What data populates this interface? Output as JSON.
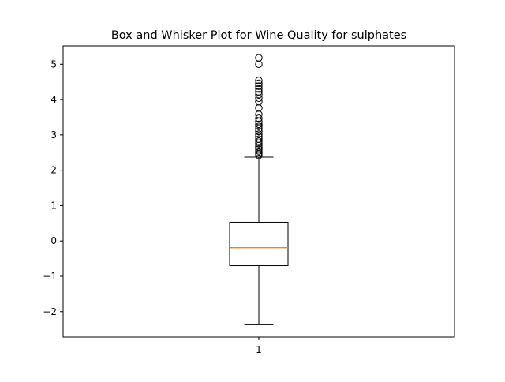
{
  "chart_data": {
    "type": "box",
    "title": "Box and Whisker Plot for Wine Quality for sulphates",
    "xlabel": "",
    "ylabel": "",
    "categories": [
      "1"
    ],
    "ylim": [
      -2.72,
      5.52
    ],
    "yticks": [
      -2,
      -1,
      0,
      1,
      2,
      3,
      4,
      5
    ],
    "ytick_labels": [
      "−2",
      "−1",
      "0",
      "1",
      "2",
      "3",
      "4",
      "5"
    ],
    "grid": false,
    "legend": "none",
    "colors": {
      "box": "#000000",
      "median": "#ff7f0e",
      "frame": "#000000",
      "background": "#ffffff"
    },
    "boxes": [
      {
        "label": "1",
        "whisker_low": -2.37,
        "q1": -0.7,
        "median": -0.19,
        "q3": 0.53,
        "whisker_high": 2.37,
        "outliers": [
          2.42,
          2.46,
          2.5,
          2.55,
          2.6,
          2.65,
          2.7,
          2.76,
          2.82,
          2.88,
          2.95,
          3.02,
          3.1,
          3.17,
          3.24,
          3.3,
          3.38,
          3.47,
          3.58,
          3.76,
          3.94,
          4.04,
          4.14,
          4.22,
          4.3,
          4.38,
          4.46,
          4.54,
          5.0,
          5.18
        ]
      }
    ]
  }
}
